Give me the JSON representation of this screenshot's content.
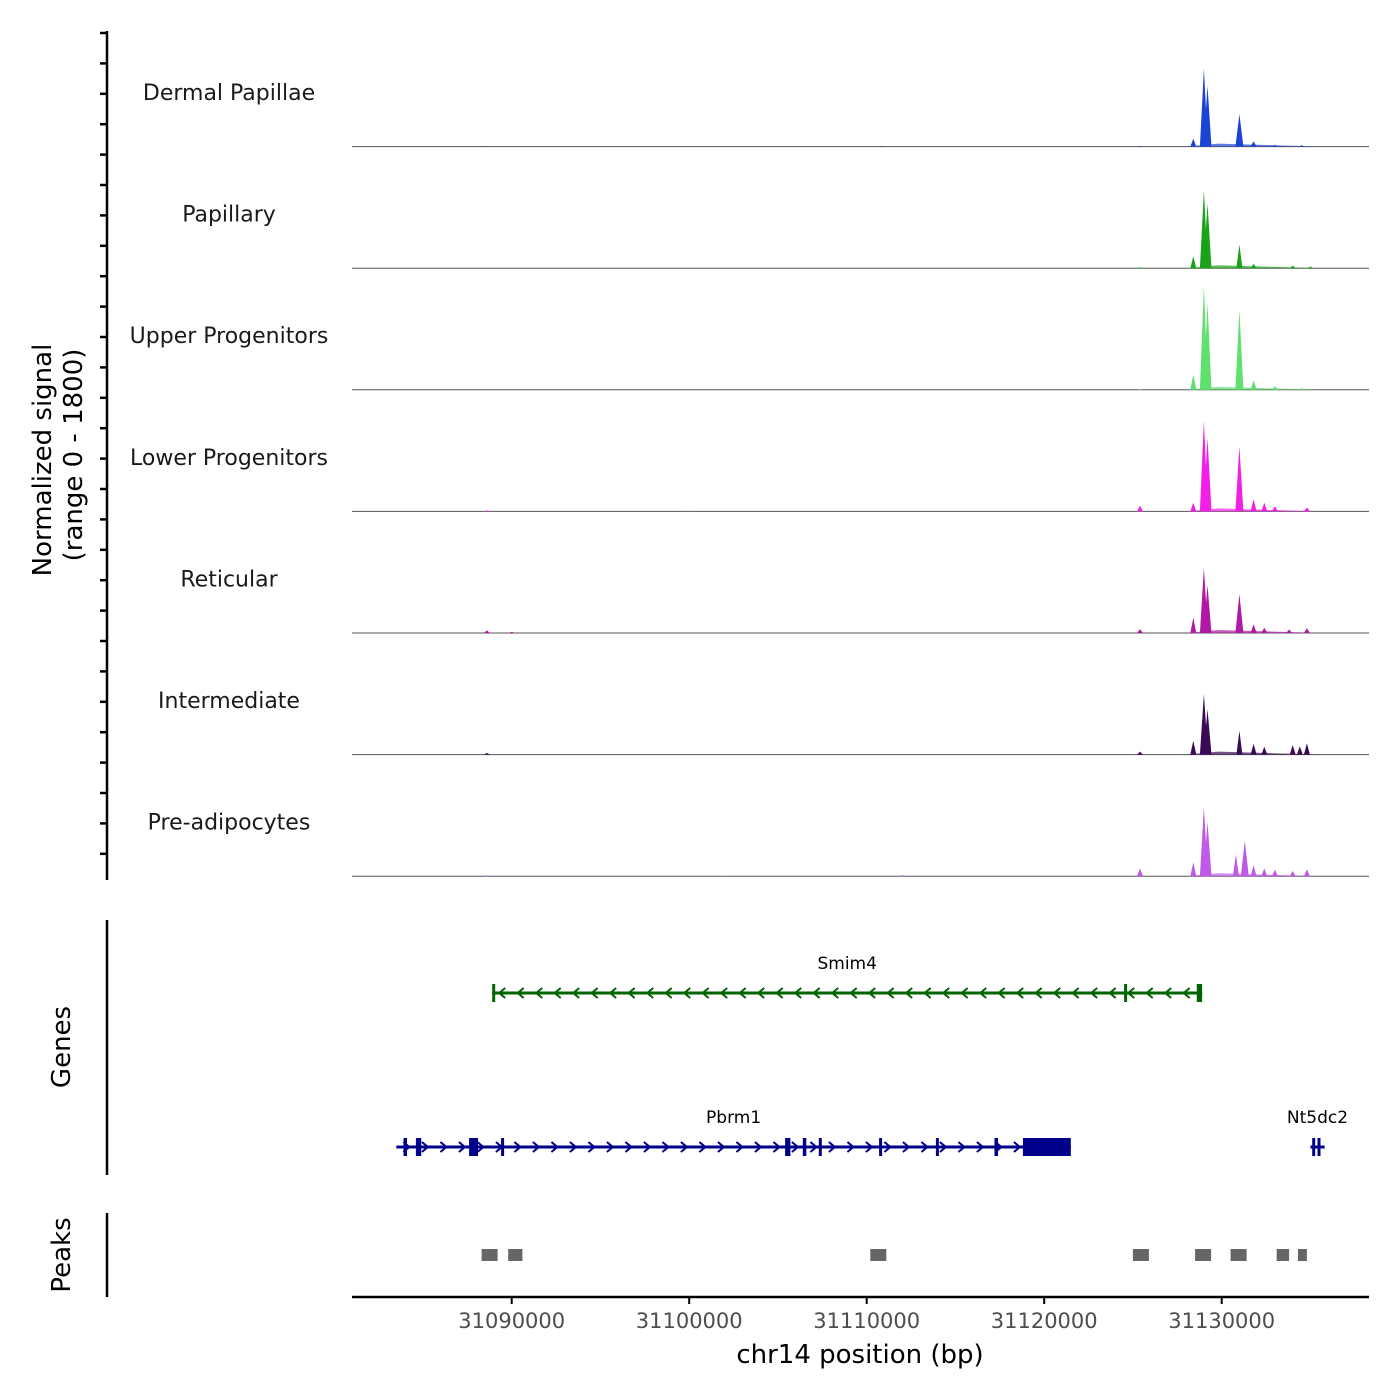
{
  "chart_data": {
    "type": "area",
    "title": "",
    "chromosome": "chr14",
    "xlabel": "chr14 position (bp)",
    "ylabel_line1": "Normalized signal",
    "ylabel_line2": "(range 0 - 1800)",
    "ylim": [
      0,
      1800
    ],
    "xlim": [
      31081000,
      31138300
    ],
    "x_ticks": [
      31090000,
      31100000,
      31110000,
      31120000,
      31130000
    ],
    "x_tick_labels": [
      "31090000",
      "31100000",
      "31110000",
      "31120000",
      "31130000"
    ],
    "series": [
      {
        "name": "Dermal Papillae",
        "color": "#1c44d4",
        "peaks": [
          [
            31088600,
            8
          ],
          [
            31110800,
            12
          ],
          [
            31125400,
            15
          ],
          [
            31128400,
            180
          ],
          [
            31129000,
            1800
          ],
          [
            31129200,
            1400
          ],
          [
            31131000,
            750
          ],
          [
            31131800,
            120
          ],
          [
            31133000,
            40
          ],
          [
            31134500,
            30
          ]
        ]
      },
      {
        "name": "Papillary",
        "color": "#18a318",
        "peaks": [
          [
            31088600,
            8
          ],
          [
            31125400,
            20
          ],
          [
            31128400,
            280
          ],
          [
            31129000,
            1800
          ],
          [
            31129200,
            1500
          ],
          [
            31131000,
            550
          ],
          [
            31131800,
            100
          ],
          [
            31134000,
            60
          ],
          [
            31135000,
            40
          ]
        ]
      },
      {
        "name": "Upper Progenitors",
        "color": "#5fe06f",
        "peaks": [
          [
            31125400,
            15
          ],
          [
            31128400,
            350
          ],
          [
            31129000,
            2400
          ],
          [
            31129200,
            2000
          ],
          [
            31131000,
            1850
          ],
          [
            31131800,
            220
          ],
          [
            31133000,
            80
          ],
          [
            31134500,
            40
          ]
        ]
      },
      {
        "name": "Lower Progenitors",
        "color": "#f21fe6",
        "peaks": [
          [
            31088600,
            20
          ],
          [
            31100000,
            10
          ],
          [
            31125400,
            130
          ],
          [
            31128400,
            200
          ],
          [
            31129000,
            2100
          ],
          [
            31129200,
            1700
          ],
          [
            31131000,
            1500
          ],
          [
            31131800,
            280
          ],
          [
            31132400,
            200
          ],
          [
            31133000,
            120
          ],
          [
            31134800,
            90
          ]
        ]
      },
      {
        "name": "Reticular",
        "color": "#b118a3",
        "peaks": [
          [
            31088600,
            60
          ],
          [
            31090000,
            30
          ],
          [
            31125400,
            90
          ],
          [
            31128400,
            350
          ],
          [
            31129000,
            1500
          ],
          [
            31129200,
            1100
          ],
          [
            31131000,
            900
          ],
          [
            31131800,
            200
          ],
          [
            31132400,
            120
          ],
          [
            31133800,
            80
          ],
          [
            31134800,
            110
          ]
        ]
      },
      {
        "name": "Intermediate",
        "color": "#3a0a55",
        "peaks": [
          [
            31088600,
            40
          ],
          [
            31125400,
            70
          ],
          [
            31128400,
            320
          ],
          [
            31129000,
            1400
          ],
          [
            31129200,
            1050
          ],
          [
            31131000,
            550
          ],
          [
            31131800,
            250
          ],
          [
            31132400,
            180
          ],
          [
            31134000,
            220
          ],
          [
            31134400,
            190
          ],
          [
            31134800,
            260
          ]
        ]
      },
      {
        "name": "Pre-adipocytes",
        "color": "#bf5ae8",
        "peaks": [
          [
            31088600,
            20
          ],
          [
            31102000,
            10
          ],
          [
            31112000,
            25
          ],
          [
            31125400,
            180
          ],
          [
            31128400,
            320
          ],
          [
            31129000,
            1600
          ],
          [
            31129200,
            1250
          ],
          [
            31130800,
            500
          ],
          [
            31131300,
            820
          ],
          [
            31131800,
            250
          ],
          [
            31132400,
            180
          ],
          [
            31133000,
            150
          ],
          [
            31134000,
            120
          ],
          [
            31134800,
            160
          ]
        ]
      }
    ],
    "genes_track_label": "Genes",
    "genes": [
      {
        "name": "Smim4",
        "strand": "-",
        "start": 31088900,
        "end": 31128900,
        "color": "#006400",
        "exons": [
          [
            31088900,
            31089000
          ],
          [
            31124500,
            31124600
          ],
          [
            31128600,
            31128900
          ]
        ]
      },
      {
        "name": "Pbrm1",
        "strand": "+",
        "start": 31083500,
        "end": 31121500,
        "color": "#00008b",
        "exons": [
          [
            31083900,
            31084100
          ],
          [
            31084600,
            31084900
          ],
          [
            31087600,
            31088100
          ],
          [
            31089400,
            31089500
          ],
          [
            31105400,
            31105700
          ],
          [
            31106400,
            31106600
          ],
          [
            31107300,
            31107400
          ],
          [
            31110700,
            31110800
          ],
          [
            31113900,
            31114000
          ],
          [
            31117200,
            31117400
          ],
          [
            31118800,
            31121500
          ]
        ]
      },
      {
        "name": "Nt5dc2",
        "strand": "+",
        "start": 31135000,
        "end": 31135800,
        "color": "#00008b",
        "exons": [
          [
            31135100,
            31135200
          ],
          [
            31135400,
            31135500
          ]
        ]
      }
    ],
    "peaks_track_label": "Peaks",
    "peak_regions": [
      [
        31088300,
        31089200
      ],
      [
        31089800,
        31090600
      ],
      [
        31110200,
        31111100
      ],
      [
        31125000,
        31125900
      ],
      [
        31128500,
        31129400
      ],
      [
        31130500,
        31131400
      ],
      [
        31133100,
        31133800
      ],
      [
        31134300,
        31134800
      ]
    ]
  }
}
